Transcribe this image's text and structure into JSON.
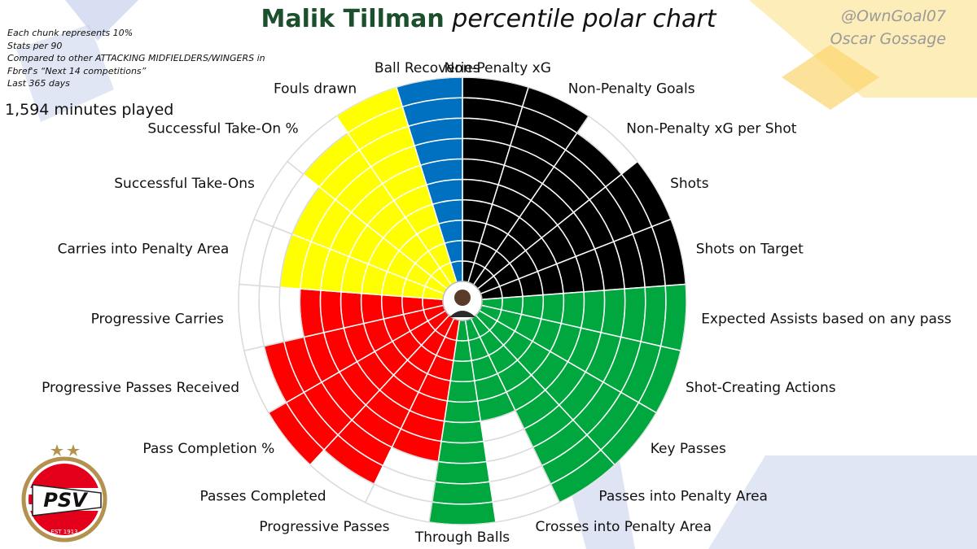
{
  "header": {
    "player_name": "Malik Tillman",
    "subtitle": "percentile polar chart",
    "author_handle": "@OwnGoal07",
    "author_name": "Oscar Gossage"
  },
  "notes": [
    "Each chunk represents 10%",
    "Stats per 90",
    "Compared to other ATTACKING MIDFIELDERS/WINGERS in",
    "Fbref's “Next 14 competitions”",
    "Last 365 days"
  ],
  "minutes_played": "1,594 minutes played",
  "logo": {
    "text": "PSV",
    "est": "EST 1913"
  },
  "colors": {
    "attacking": "#000000",
    "creation": "#00a63e",
    "passing": "#ff0000",
    "carrying": "#ffff00",
    "defending": "#0070c0",
    "grid_empty": "#ffffff",
    "grid_line": "#dadada"
  },
  "chart_data": {
    "type": "polar-bar",
    "scale_max": 100,
    "chunk_size": 10,
    "stats": [
      {
        "label": "Non-Penalty xG",
        "value": 93,
        "group": "attacking"
      },
      {
        "label": "Non-Penalty Goals",
        "value": 99,
        "group": "attacking"
      },
      {
        "label": "Non-Penalty xG per Shot",
        "value": 87,
        "group": "attacking"
      },
      {
        "label": "Shots",
        "value": 92,
        "group": "attacking"
      },
      {
        "label": "Shots on Target",
        "value": 99,
        "group": "attacking"
      },
      {
        "label": "Expected Assists based on any pass",
        "value": 99,
        "group": "creation"
      },
      {
        "label": "Shot-Creating Actions",
        "value": 99,
        "group": "creation"
      },
      {
        "label": "Key Passes",
        "value": 99,
        "group": "creation"
      },
      {
        "label": "Passes into Penalty Area",
        "value": 98,
        "group": "creation"
      },
      {
        "label": "Crosses into Penalty Area",
        "value": 45,
        "group": "creation"
      },
      {
        "label": "Through Balls",
        "value": 98,
        "group": "creation"
      },
      {
        "label": "Progressive Passes",
        "value": 70,
        "group": "passing"
      },
      {
        "label": "Passes Completed",
        "value": 86,
        "group": "passing"
      },
      {
        "label": "Pass Completion %",
        "value": 99,
        "group": "passing"
      },
      {
        "label": "Progressive Passes Received",
        "value": 81,
        "group": "passing"
      },
      {
        "label": "Progressive Carries",
        "value": 67,
        "group": "passing"
      },
      {
        "label": "Carries into Penalty Area",
        "value": 77,
        "group": "carrying"
      },
      {
        "label": "Successful Take-Ons",
        "value": 73,
        "group": "carrying"
      },
      {
        "label": "Successful Take-On %",
        "value": 81,
        "group": "carrying"
      },
      {
        "label": "Fouls drawn",
        "value": 99,
        "group": "carrying"
      },
      {
        "label": "Ball Recoveries",
        "value": 99,
        "group": "defending"
      }
    ]
  }
}
